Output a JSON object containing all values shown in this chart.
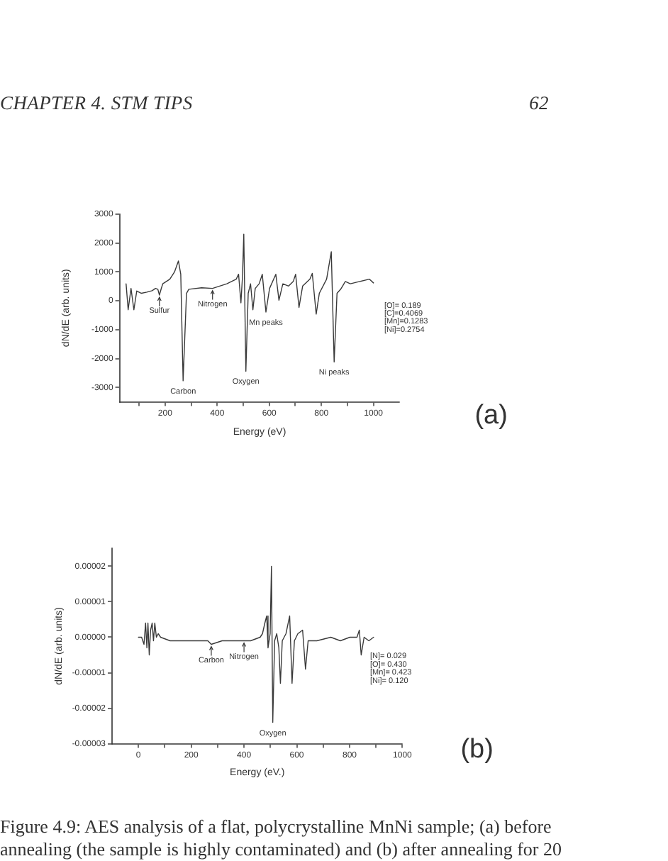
{
  "chart_data": [
    {
      "type": "other",
      "annotations": [
        "CHAPTER 4. STM TIPS",
        "62"
      ]
    },
    {
      "type": "line",
      "xlabel": "Energy (eV)",
      "ylabel": "dN/dE (arb. units)",
      "x": [
        50,
        58,
        69,
        80,
        91,
        109,
        130,
        150,
        163,
        172,
        178,
        185,
        191,
        218,
        236,
        251,
        260,
        269,
        282,
        291,
        340,
        382,
        437,
        473,
        482,
        491,
        497,
        502,
        510,
        519,
        528,
        537,
        546,
        561,
        573,
        587,
        601,
        625,
        637,
        652,
        674,
        692,
        701,
        714,
        728,
        756,
        765,
        780,
        792,
        820,
        838,
        849,
        860,
        874,
        892,
        911,
        947,
        984,
        1000
      ],
      "series": [
        {
          "color": "#3a3a3a",
          "values": [
            590,
            -310,
            430,
            -310,
            340,
            260,
            300,
            350,
            430,
            400,
            200,
            420,
            590,
            750,
            1000,
            1380,
            920,
            -2770,
            260,
            400,
            450,
            430,
            590,
            750,
            920,
            -70,
            840,
            2310,
            -2440,
            260,
            590,
            -310,
            430,
            590,
            920,
            -390,
            430,
            920,
            20,
            590,
            510,
            670,
            920,
            -230,
            510,
            750,
            950,
            -460,
            260,
            750,
            1700,
            -2120,
            260,
            400,
            670,
            590,
            670,
            750,
            620
          ]
        }
      ],
      "xlim": [
        25,
        1100
      ],
      "xticks": [
        {
          "value": 100,
          "label": null
        },
        200,
        {
          "value": 300,
          "label": null
        },
        400,
        {
          "value": 500,
          "label": null
        },
        600,
        {
          "value": 700,
          "label": null
        },
        800,
        {
          "value": 900,
          "label": null
        },
        1000
      ],
      "ylim": [
        -3500,
        3000
      ],
      "yticks": [
        -3000,
        -2000,
        -1000,
        0,
        1000,
        2000,
        3000
      ],
      "line_style": "solid",
      "annotations": [
        {
          "text": "Sulfur",
          "x": 178,
          "y": 200
        },
        {
          "text": "Nitrogen",
          "x": 382,
          "y": 430
        },
        {
          "text": "Carbon",
          "x": 269,
          "y": -2770
        },
        {
          "text": "Oxygen",
          "x": 510,
          "y": -2440
        },
        {
          "text": "Mn peaks",
          "x": 587,
          "y": -390
        },
        {
          "text": "Ni peaks",
          "x": 849,
          "y": -2120
        },
        "[O]= 0.189",
        "[C]=0.4069",
        "[Mn]=0.1283",
        "[Ni]=0.2754",
        "(a)"
      ]
    },
    {
      "type": "line",
      "xlabel": "Energy (eV.)",
      "ylabel": "dN/dE (arb. units)",
      "x": [
        0,
        12,
        21,
        27,
        32,
        36,
        41,
        46,
        52,
        57,
        62,
        68,
        75,
        84,
        120,
        192,
        263,
        276,
        317,
        371,
        425,
        461,
        470,
        479,
        486,
        491,
        499,
        504,
        509,
        516,
        524,
        532,
        538,
        545,
        559,
        573,
        582,
        591,
        604,
        622,
        633,
        643,
        676,
        729,
        765,
        801,
        828,
        837,
        844,
        855,
        873,
        891
      ],
      "series": [
        {
          "color": "#3a3a3a",
          "values": [
            0,
            0,
            -2e-06,
            4e-06,
            -3e-06,
            4e-06,
            -5e-06,
            2e-06,
            4e-06,
            -1e-06,
            4e-06,
            0,
            1e-06,
            0,
            -1e-06,
            -1e-06,
            -1e-06,
            -2e-06,
            -1e-06,
            -1e-06,
            -1e-06,
            0,
            1e-06,
            4e-06,
            6e-06,
            -3e-06,
            1e-06,
            2e-05,
            -2.4e-05,
            -1e-06,
            1e-06,
            -3e-06,
            -1.3e-05,
            -1e-06,
            1e-06,
            6e-06,
            -1.3e-05,
            -1e-06,
            1e-06,
            2e-06,
            -9e-06,
            -1e-06,
            -1e-06,
            0,
            -1e-06,
            0,
            0,
            2e-06,
            -5e-06,
            0,
            -1e-06,
            0
          ]
        }
      ],
      "xlim": [
        -100,
        1000
      ],
      "xticks": [
        0,
        {
          "value": 100,
          "label": null
        },
        200,
        {
          "value": 300,
          "label": null
        },
        400,
        {
          "value": 500,
          "label": null
        },
        600,
        {
          "value": 700,
          "label": null
        },
        800,
        {
          "value": 900,
          "label": null
        },
        1000
      ],
      "ylim": [
        -3e-05,
        2.5e-05
      ],
      "yticks": [
        {
          "value": -3e-05,
          "label": "-0.00003"
        },
        {
          "value": -2e-05,
          "label": "-0.00002"
        },
        {
          "value": -1e-05,
          "label": "-0.00001"
        },
        {
          "value": 0,
          "label": "0.00000"
        },
        {
          "value": 1e-05,
          "label": "0.00001"
        },
        {
          "value": 2e-05,
          "label": "0.00002"
        }
      ],
      "line_style": "solid",
      "annotations": [
        {
          "text": "Carbon",
          "x": 276,
          "y": -2e-06
        },
        {
          "text": "Nitrogen",
          "x": 400,
          "y": -1e-06
        },
        {
          "text": "Oxygen",
          "x": 509,
          "y": -2.4e-05
        },
        "[N]= 0.029",
        "[O]= 0.430",
        "[Mn]= 0.423",
        "[Ni]= 0.120",
        "(b)"
      ]
    },
    {
      "type": "other",
      "annotations": [
        "Figure 4.9: AES analysis of a flat, polycrystalline MnNi sample; (a) before annealing (the sample is highly contaminated) and (b) after annealing for 20"
      ]
    }
  ]
}
